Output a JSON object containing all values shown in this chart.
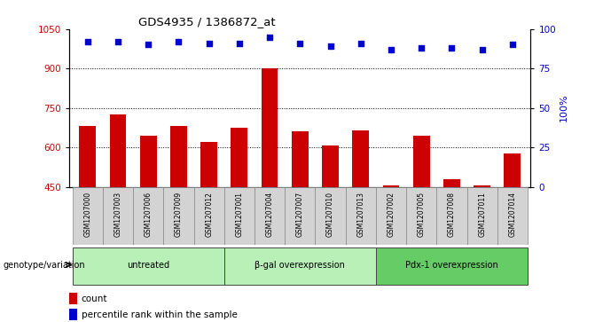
{
  "title": "GDS4935 / 1386872_at",
  "samples": [
    "GSM1207000",
    "GSM1207003",
    "GSM1207006",
    "GSM1207009",
    "GSM1207012",
    "GSM1207001",
    "GSM1207004",
    "GSM1207007",
    "GSM1207010",
    "GSM1207013",
    "GSM1207002",
    "GSM1207005",
    "GSM1207008",
    "GSM1207011",
    "GSM1207014"
  ],
  "bar_values": [
    680,
    725,
    645,
    680,
    620,
    675,
    900,
    660,
    608,
    665,
    455,
    645,
    480,
    455,
    578
  ],
  "dot_values": [
    92,
    92,
    90,
    92,
    91,
    91,
    95,
    91,
    89,
    91,
    87,
    88,
    88,
    87,
    90
  ],
  "groups": [
    {
      "label": "untreated",
      "start": 0,
      "end": 5
    },
    {
      "label": "β-gal overexpression",
      "start": 5,
      "end": 10
    },
    {
      "label": "Pdx-1 overexpression",
      "start": 10,
      "end": 15
    }
  ],
  "ylim_left": [
    450,
    1050
  ],
  "ylim_right": [
    0,
    100
  ],
  "yticks_left": [
    450,
    600,
    750,
    900,
    1050
  ],
  "yticks_right": [
    0,
    25,
    50,
    75,
    100
  ],
  "bar_color": "#cc0000",
  "dot_color": "#0000cc",
  "grid_values": [
    600,
    750,
    900
  ],
  "bar_width": 0.55,
  "genotype_label": "genotype/variation",
  "legend_count": "count",
  "legend_percentile": "percentile rank within the sample",
  "bg_color_sample": "#d3d3d3",
  "group_color_light": "#b8f0b8",
  "group_color_medium": "#66cc66",
  "right_axis_top_label": "100%"
}
